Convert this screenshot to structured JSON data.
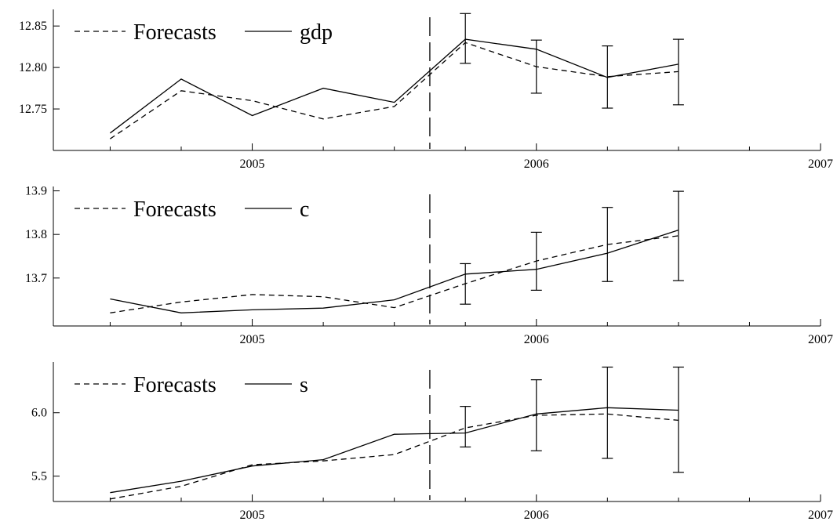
{
  "chart_data": [
    {
      "type": "line",
      "xlabel": "",
      "ylabel": "",
      "xlim": [
        2004.3,
        2007.0
      ],
      "ylim": [
        12.7,
        12.87
      ],
      "x_ticks": [
        2005,
        2006,
        2007
      ],
      "x_tick_labels": [
        "2005",
        "2006",
        "2007"
      ],
      "y_ticks": [
        12.75,
        12.8,
        12.85
      ],
      "y_tick_labels": [
        "12.75",
        "12.80",
        "12.85"
      ],
      "forecast_origin": 2005.625,
      "legend": {
        "placement": "top-left",
        "entries": [
          "Forecasts",
          "gdp"
        ]
      },
      "series": [
        {
          "name": "gdp",
          "style": "solid",
          "x": [
            2004.5,
            2004.75,
            2005.0,
            2005.25,
            2005.5,
            2005.75,
            2006.0,
            2006.25,
            2006.5
          ],
          "values": [
            12.721,
            12.786,
            12.742,
            12.775,
            12.758,
            12.834,
            12.822,
            12.788,
            12.804
          ]
        },
        {
          "name": "Forecasts",
          "style": "dashed",
          "x": [
            2004.5,
            2004.75,
            2005.0,
            2005.25,
            2005.5,
            2005.75,
            2006.0,
            2006.25,
            2006.5
          ],
          "values": [
            12.714,
            12.772,
            12.76,
            12.738,
            12.753,
            12.83,
            12.801,
            12.789,
            12.795
          ]
        }
      ],
      "error_bars": [
        {
          "x": 2005.75,
          "lower": 12.805,
          "upper": 12.865
        },
        {
          "x": 2006.0,
          "lower": 12.769,
          "upper": 12.833
        },
        {
          "x": 2006.25,
          "lower": 12.751,
          "upper": 12.826
        },
        {
          "x": 2006.5,
          "lower": 12.755,
          "upper": 12.834
        }
      ]
    },
    {
      "type": "line",
      "xlabel": "",
      "ylabel": "",
      "xlim": [
        2004.3,
        2007.0
      ],
      "ylim": [
        13.59,
        13.91
      ],
      "x_ticks": [
        2005,
        2006,
        2007
      ],
      "x_tick_labels": [
        "2005",
        "2006",
        "2007"
      ],
      "y_ticks": [
        13.7,
        13.8,
        13.9
      ],
      "y_tick_labels": [
        "13.7",
        "13.8",
        "13.9"
      ],
      "forecast_origin": 2005.625,
      "legend": {
        "placement": "top-left",
        "entries": [
          "Forecasts",
          "c"
        ]
      },
      "series": [
        {
          "name": "c",
          "style": "solid",
          "x": [
            2004.5,
            2004.75,
            2005.0,
            2005.25,
            2005.5,
            2005.75,
            2006.0,
            2006.25,
            2006.5
          ],
          "values": [
            13.652,
            13.62,
            13.627,
            13.631,
            13.65,
            13.709,
            13.72,
            13.757,
            13.81
          ]
        },
        {
          "name": "Forecasts",
          "style": "dashed",
          "x": [
            2004.5,
            2004.75,
            2005.0,
            2005.25,
            2005.5,
            2005.75,
            2006.0,
            2006.25,
            2006.5
          ],
          "values": [
            13.62,
            13.645,
            13.662,
            13.657,
            13.632,
            13.687,
            13.739,
            13.777,
            13.797
          ]
        }
      ],
      "error_bars": [
        {
          "x": 2005.75,
          "lower": 13.64,
          "upper": 13.733
        },
        {
          "x": 2006.0,
          "lower": 13.672,
          "upper": 13.805
        },
        {
          "x": 2006.25,
          "lower": 13.692,
          "upper": 13.862
        },
        {
          "x": 2006.5,
          "lower": 13.694,
          "upper": 13.899
        }
      ]
    },
    {
      "type": "line",
      "xlabel": "",
      "ylabel": "",
      "xlim": [
        2004.3,
        2007.0
      ],
      "ylim": [
        5.3,
        6.4
      ],
      "x_ticks": [
        2005,
        2006,
        2007
      ],
      "x_tick_labels": [
        "2005",
        "2006",
        "2007"
      ],
      "y_ticks": [
        5.5,
        6.0
      ],
      "y_tick_labels": [
        "5.5",
        "6.0"
      ],
      "forecast_origin": 2005.625,
      "legend": {
        "placement": "top-left",
        "entries": [
          "Forecasts",
          "s"
        ]
      },
      "series": [
        {
          "name": "s",
          "style": "solid",
          "x": [
            2004.5,
            2004.75,
            2005.0,
            2005.25,
            2005.5,
            2005.75,
            2006.0,
            2006.25,
            2006.5
          ],
          "values": [
            5.37,
            5.46,
            5.58,
            5.63,
            5.83,
            5.84,
            5.99,
            6.04,
            6.02
          ]
        },
        {
          "name": "Forecasts",
          "style": "dashed",
          "x": [
            2004.5,
            2004.75,
            2005.0,
            2005.25,
            2005.5,
            2005.75,
            2006.0,
            2006.25,
            2006.5
          ],
          "values": [
            5.32,
            5.42,
            5.59,
            5.62,
            5.67,
            5.88,
            5.98,
            5.99,
            5.94
          ]
        }
      ],
      "error_bars": [
        {
          "x": 2005.75,
          "lower": 5.73,
          "upper": 6.05
        },
        {
          "x": 2006.0,
          "lower": 5.7,
          "upper": 6.26
        },
        {
          "x": 2006.25,
          "lower": 5.64,
          "upper": 6.36
        },
        {
          "x": 2006.5,
          "lower": 5.53,
          "upper": 6.36
        }
      ]
    }
  ]
}
